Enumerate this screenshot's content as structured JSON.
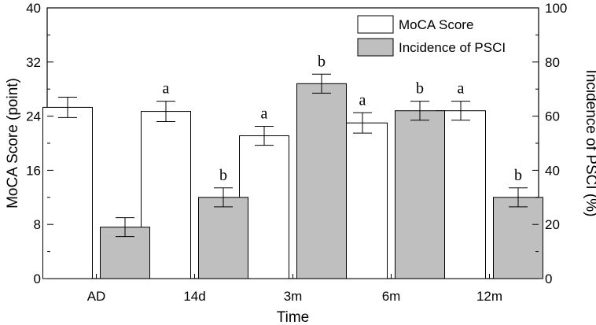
{
  "chart_data": {
    "type": "bar",
    "title": "",
    "xlabel": "Time",
    "ylabel": "MoCA Score (point)",
    "y2label": "Incidence of PSCI (%)",
    "categories": [
      "AD",
      "14d",
      "3m",
      "6m",
      "12m"
    ],
    "ylim": [
      0,
      40
    ],
    "y2lim": [
      0,
      100
    ],
    "yticks": [
      "0",
      "8",
      "16",
      "24",
      "32",
      "40"
    ],
    "y2ticks": [
      "0",
      "20",
      "40",
      "60",
      "80",
      "100"
    ],
    "series": [
      {
        "name": "MoCA Score",
        "axis": "left",
        "fill": "#ffffff",
        "values": [
          25.3,
          24.7,
          21.1,
          23.0,
          24.8
        ],
        "errors": [
          1.5,
          1.5,
          1.4,
          1.5,
          1.4
        ],
        "annotations": [
          "",
          "a",
          "a",
          "a",
          "a"
        ]
      },
      {
        "name": "Incidence of PSCI",
        "axis": "right",
        "fill": "#bfbfbf",
        "values": [
          19.0,
          30.0,
          72.0,
          62.0,
          30.0
        ],
        "errors": [
          3.5,
          3.5,
          3.5,
          3.5,
          3.5
        ],
        "annotations": [
          "",
          "b",
          "b",
          "b",
          "b"
        ]
      }
    ],
    "legend_position": "top-right"
  }
}
